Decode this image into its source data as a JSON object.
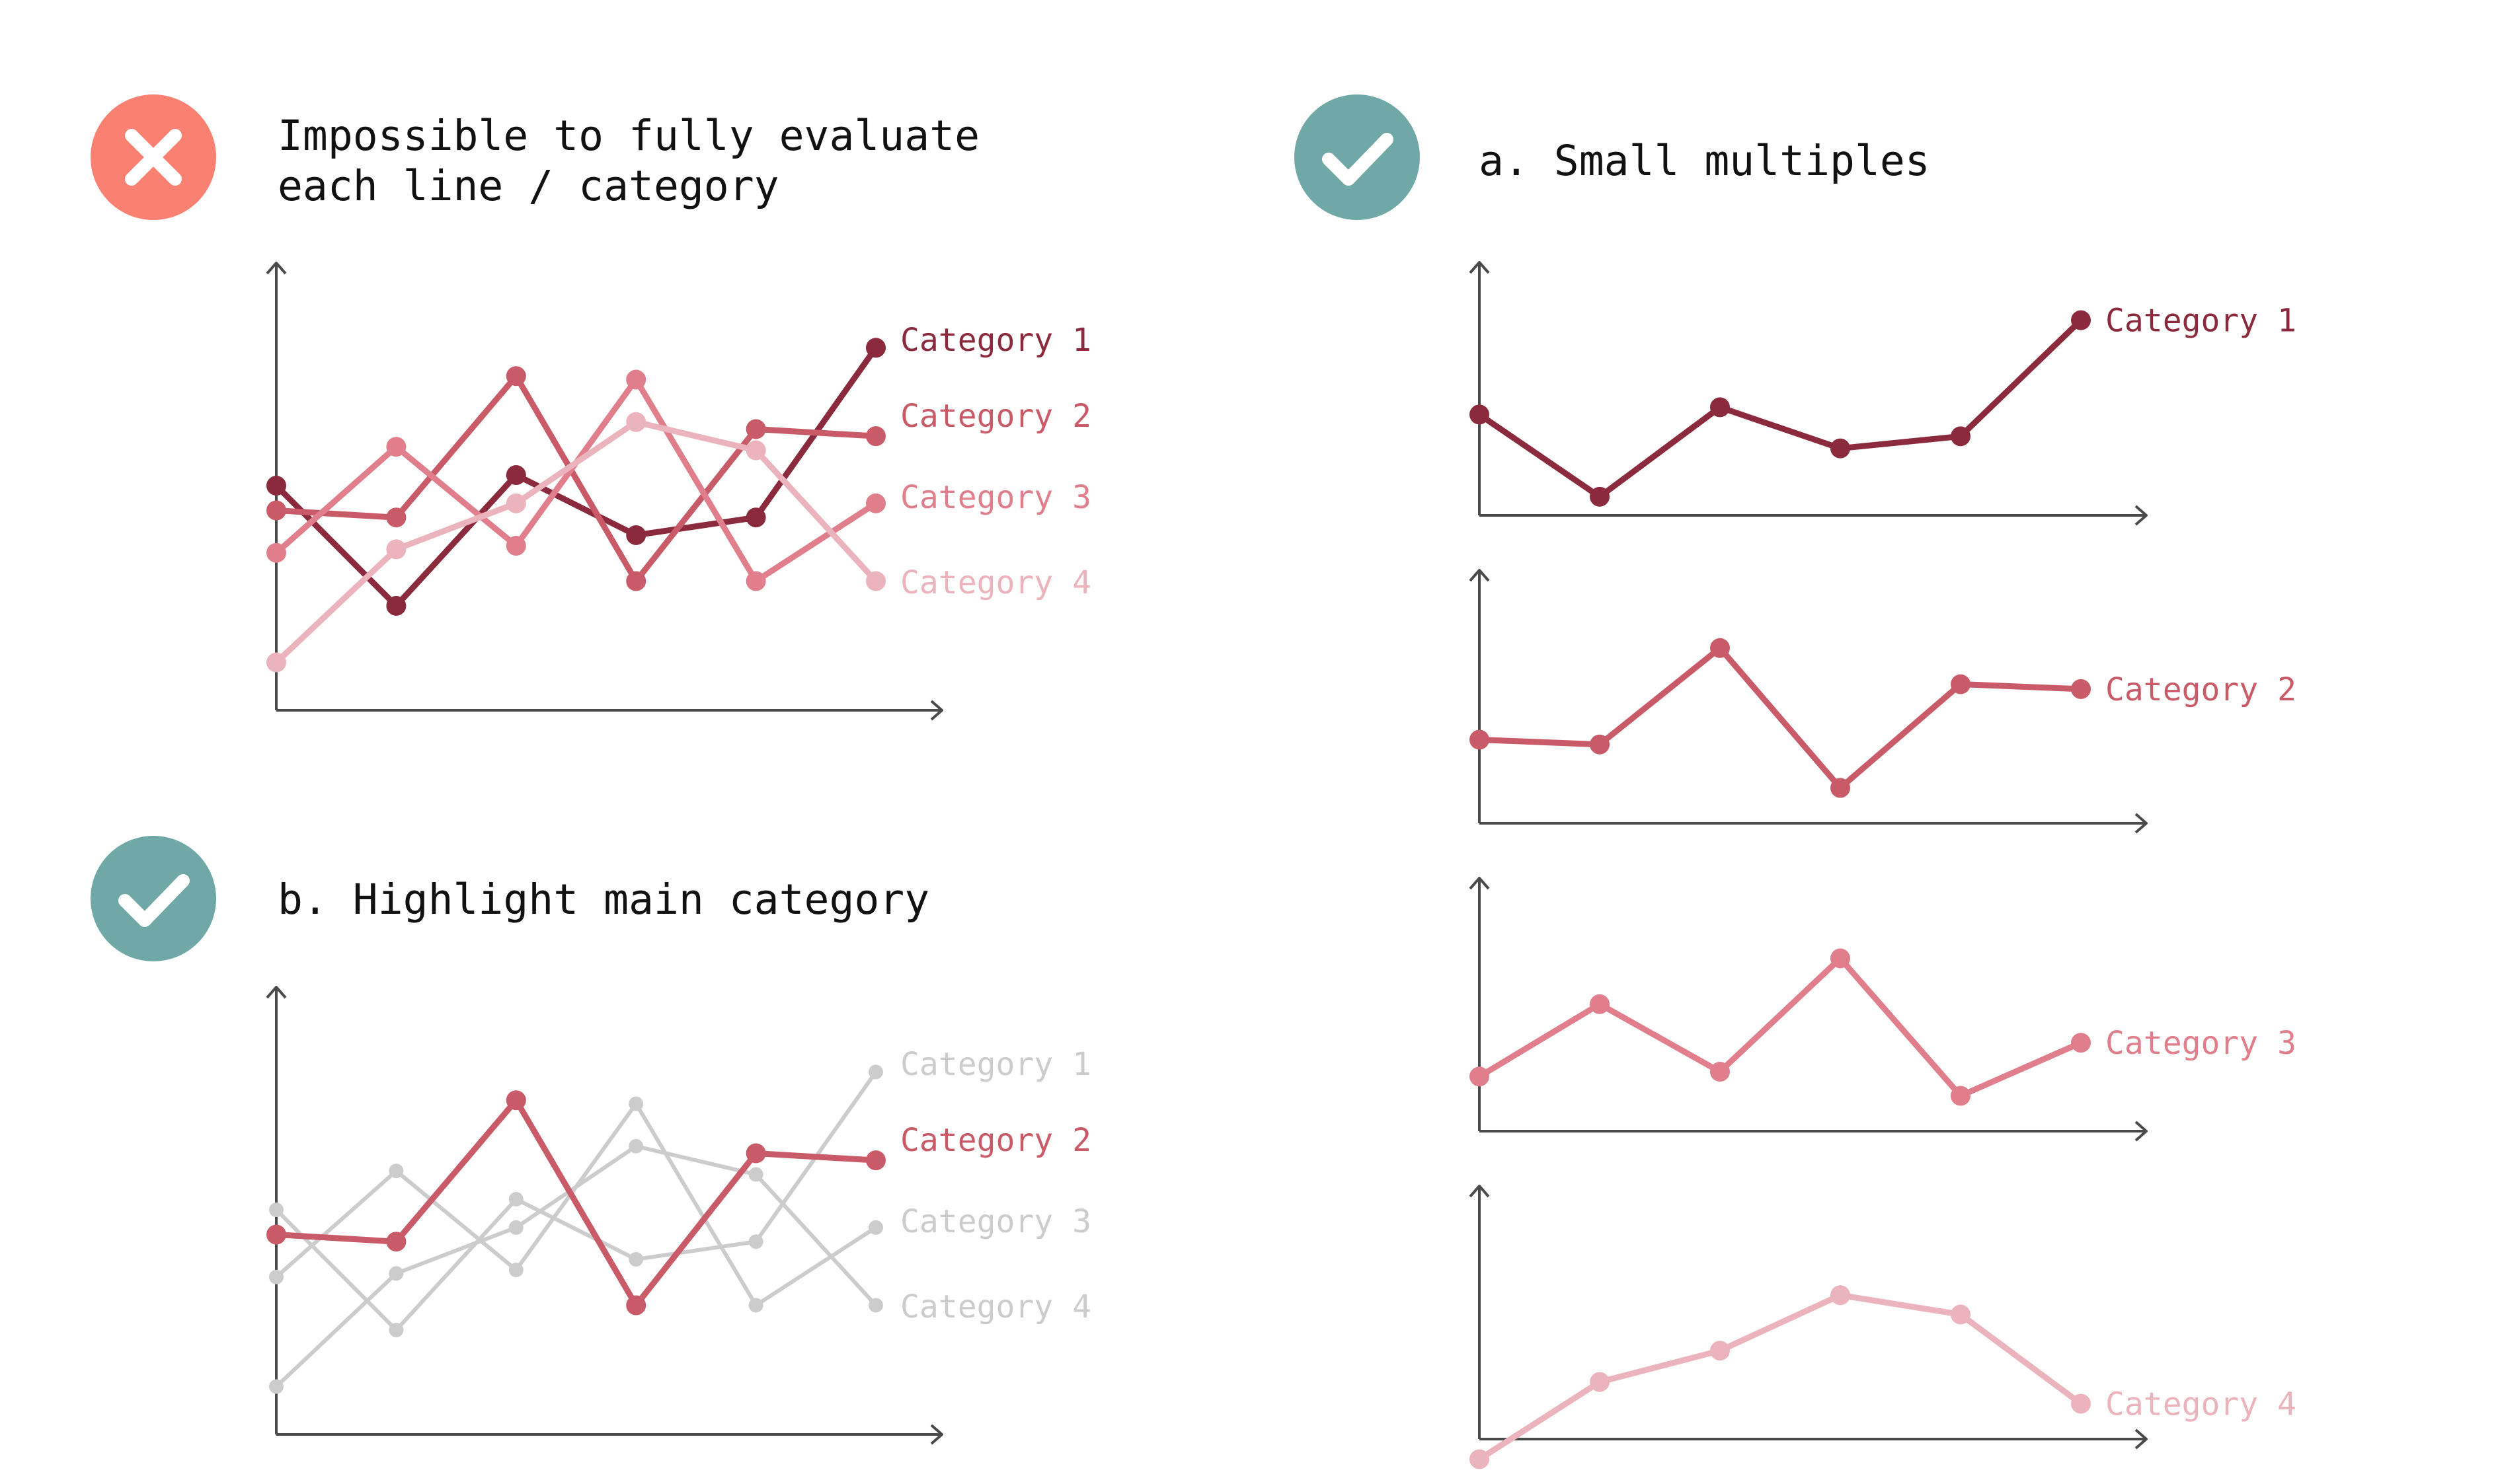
{
  "colors": {
    "bad": "#fa8072",
    "good": "#6fa8a6",
    "axis": "#4a4a4a",
    "muted": "#cccccc",
    "cat1": "#8b2a3c",
    "cat2": "#c95a68",
    "cat3": "#e07e8c",
    "cat4": "#ebb3bb"
  },
  "icons": {
    "bad": "cross-icon",
    "good": "checkmark-icon"
  },
  "panels": {
    "bad": {
      "title_line1": "Impossible to fully evaluate",
      "title_line2": "each line / category"
    },
    "small_multiples": {
      "title": "a. Small multiples"
    },
    "highlight": {
      "title": "b. Highlight main category",
      "highlighted_series": "Category 2"
    }
  },
  "chart_data": [
    {
      "type": "line",
      "panel": "bad",
      "x": [
        1,
        2,
        3,
        4,
        5,
        6
      ],
      "series": [
        {
          "name": "Category 1",
          "color": "cat1",
          "values": [
            57,
            23,
            60,
            43,
            48,
            96
          ]
        },
        {
          "name": "Category 2",
          "color": "cat2",
          "values": [
            50,
            48,
            88,
            30,
            73,
            71
          ]
        },
        {
          "name": "Category 3",
          "color": "cat3",
          "values": [
            38,
            68,
            40,
            87,
            30,
            52
          ]
        },
        {
          "name": "Category 4",
          "color": "cat4",
          "values": [
            7,
            39,
            52,
            75,
            67,
            30
          ]
        }
      ],
      "ylim": [
        0,
        100
      ],
      "grid": false,
      "legend": "right end labels"
    },
    {
      "type": "line",
      "panel": "highlight",
      "x": [
        1,
        2,
        3,
        4,
        5,
        6
      ],
      "series": [
        {
          "name": "Category 1",
          "color": "muted",
          "values": [
            57,
            23,
            60,
            43,
            48,
            96
          ]
        },
        {
          "name": "Category 2",
          "color": "cat2",
          "highlight": true,
          "values": [
            50,
            48,
            88,
            30,
            73,
            71
          ]
        },
        {
          "name": "Category 3",
          "color": "muted",
          "values": [
            38,
            68,
            40,
            87,
            30,
            52
          ]
        },
        {
          "name": "Category 4",
          "color": "muted",
          "values": [
            7,
            39,
            52,
            75,
            67,
            30
          ]
        }
      ],
      "ylim": [
        0,
        100
      ],
      "grid": false,
      "legend": "right end labels"
    },
    {
      "type": "line",
      "panel": "small_multiples",
      "x": [
        1,
        2,
        3,
        4,
        5,
        6
      ],
      "series": [
        {
          "name": "Category 1",
          "color": "cat1",
          "values": [
            57,
            23,
            60,
            43,
            48,
            96
          ]
        }
      ],
      "ylim": [
        0,
        100
      ],
      "grid": false
    },
    {
      "type": "line",
      "panel": "small_multiples",
      "x": [
        1,
        2,
        3,
        4,
        5,
        6
      ],
      "series": [
        {
          "name": "Category 2",
          "color": "cat2",
          "values": [
            50,
            48,
            88,
            30,
            73,
            71
          ]
        }
      ],
      "ylim": [
        0,
        100
      ],
      "grid": false
    },
    {
      "type": "line",
      "panel": "small_multiples",
      "x": [
        1,
        2,
        3,
        4,
        5,
        6
      ],
      "series": [
        {
          "name": "Category 3",
          "color": "cat3",
          "values": [
            38,
            68,
            40,
            87,
            30,
            52
          ]
        }
      ],
      "ylim": [
        0,
        100
      ],
      "grid": false
    },
    {
      "type": "line",
      "panel": "small_multiples",
      "x": [
        1,
        2,
        3,
        4,
        5,
        6
      ],
      "series": [
        {
          "name": "Category 4",
          "color": "cat4",
          "values": [
            7,
            39,
            52,
            75,
            67,
            30
          ]
        }
      ],
      "ylim": [
        0,
        100
      ],
      "grid": false
    }
  ]
}
